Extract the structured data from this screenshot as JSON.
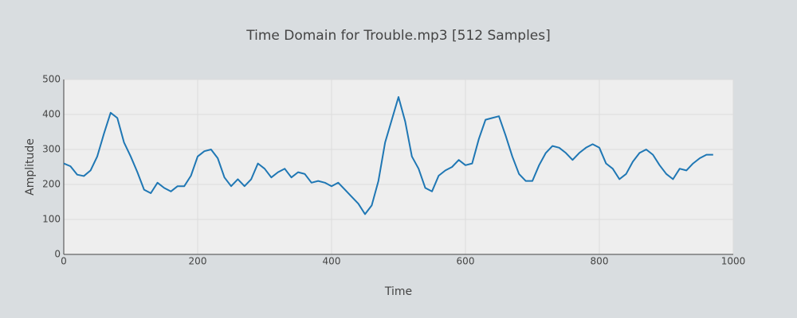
{
  "chart_data": {
    "type": "line",
    "title": "Time Domain for Trouble.mp3 [512 Samples]",
    "x_label": "Time",
    "y_label": "Amplitude",
    "x": [
      0,
      10,
      20,
      30,
      40,
      50,
      60,
      70,
      80,
      90,
      100,
      110,
      120,
      130,
      140,
      150,
      160,
      170,
      180,
      190,
      200,
      210,
      220,
      230,
      240,
      250,
      260,
      270,
      280,
      290,
      300,
      310,
      320,
      330,
      340,
      350,
      360,
      370,
      380,
      390,
      400,
      410,
      420,
      430,
      440,
      450,
      460,
      470,
      480,
      490,
      500,
      510,
      520,
      530,
      540,
      550,
      560,
      570,
      580,
      590,
      600,
      610,
      620,
      630,
      640,
      650,
      660,
      670,
      680,
      690,
      700,
      710,
      720,
      730,
      740,
      750,
      760,
      770,
      780,
      790,
      800,
      810,
      820,
      830,
      840,
      850,
      860,
      870,
      880,
      890,
      900,
      910,
      920,
      930,
      940,
      950,
      960,
      970
    ],
    "series": [
      {
        "name": "Amplitude",
        "color": "#1f77b4",
        "values": [
          260,
          252,
          228,
          224,
          240,
          280,
          345,
          405,
          390,
          320,
          280,
          235,
          185,
          175,
          205,
          190,
          180,
          195,
          195,
          225,
          280,
          295,
          300,
          275,
          220,
          195,
          215,
          195,
          215,
          260,
          245,
          220,
          235,
          245,
          220,
          235,
          230,
          205,
          210,
          205,
          195,
          205,
          185,
          165,
          145,
          115,
          140,
          210,
          320,
          385,
          450,
          380,
          280,
          245,
          190,
          180,
          225,
          240,
          250,
          270,
          255,
          260,
          330,
          385,
          390,
          395,
          340,
          280,
          230,
          210,
          210,
          255,
          290,
          310,
          305,
          290,
          270,
          290,
          305,
          315,
          305,
          260,
          245,
          215,
          230,
          265,
          290,
          300,
          285,
          255,
          230,
          215,
          245,
          240,
          260,
          275,
          285,
          285
        ]
      }
    ],
    "xlim": [
      0,
      1000
    ],
    "xticks": [
      0,
      200,
      400,
      600,
      800,
      1000
    ],
    "ylim": [
      0,
      500
    ],
    "yticks": [
      0,
      100,
      200,
      300,
      400,
      500
    ],
    "grid": true
  }
}
